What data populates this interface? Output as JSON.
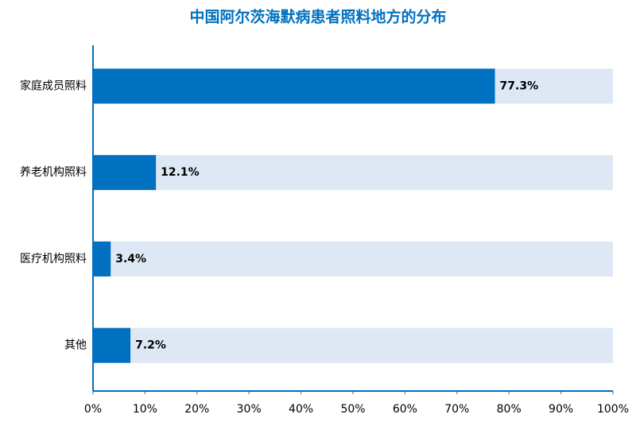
{
  "chart_data": {
    "type": "bar",
    "orientation": "horizontal",
    "title": "中国阿尔茨海默病患者照料地方的分布",
    "categories": [
      "家庭成员照料",
      "养老机构照料",
      "医疗机构照料",
      "其他"
    ],
    "values": [
      77.3,
      12.1,
      3.4,
      7.2
    ],
    "value_labels": [
      "77.3%",
      "12.1%",
      "3.4%",
      "7.2%"
    ],
    "color": "#0070c0",
    "track_color": "#dde8f4",
    "xlim": [
      0,
      100
    ],
    "xticks": [
      {
        "value": 0,
        "label": "0%"
      },
      {
        "value": 10,
        "label": "10%"
      },
      {
        "value": 20,
        "label": "20%"
      },
      {
        "value": 30,
        "label": "30%"
      },
      {
        "value": 40,
        "label": "40%"
      },
      {
        "value": 50,
        "label": "50%"
      },
      {
        "value": 60,
        "label": "60%"
      },
      {
        "value": 70,
        "label": "70%"
      },
      {
        "value": 80,
        "label": "80%"
      },
      {
        "value": 90,
        "label": "90%"
      },
      {
        "value": 100,
        "label": "100%"
      }
    ],
    "grid": false
  }
}
